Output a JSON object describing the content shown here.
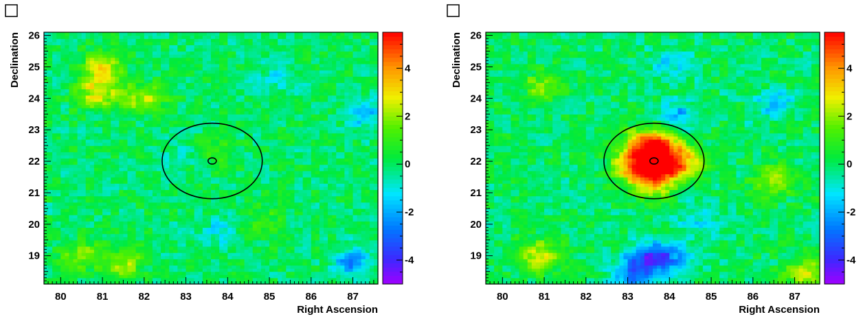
{
  "chart_data": [
    {
      "type": "heatmap",
      "title": "",
      "xlabel": "Right Ascension",
      "ylabel": "Declination",
      "xlim": [
        79.6,
        87.6
      ],
      "ylim": [
        18.1,
        26.1
      ],
      "xticks": [
        "80",
        "81",
        "82",
        "83",
        "84",
        "85",
        "86",
        "87"
      ],
      "yticks": [
        "19",
        "20",
        "21",
        "22",
        "23",
        "24",
        "25",
        "26"
      ],
      "colorbar": {
        "range": [
          -5,
          5.5
        ],
        "ticks": [
          "-4",
          "-2",
          "0",
          "2",
          "4"
        ]
      },
      "grid": false,
      "circles": [
        {
          "ra": 83.63,
          "dec": 22.01,
          "radius_deg": 1.2
        },
        {
          "ra": 83.63,
          "dec": 22.01,
          "radius_deg": 0.1
        }
      ],
      "hotspots": [
        {
          "ra": 80.9,
          "dec": 24.2,
          "value": 2.8
        },
        {
          "ra": 81.0,
          "dec": 25.0,
          "value": 2.5
        },
        {
          "ra": 82.0,
          "dec": 24.0,
          "value": 2.2
        },
        {
          "ra": 80.5,
          "dec": 19.0,
          "value": 1.8
        },
        {
          "ra": 81.5,
          "dec": 18.7,
          "value": 2.0
        },
        {
          "ra": 83.7,
          "dec": 22.3,
          "value": 1.3
        },
        {
          "ra": 84.8,
          "dec": 20.2,
          "value": 1.0
        },
        {
          "ra": 87.3,
          "dec": 23.5,
          "value": -1.8
        },
        {
          "ra": 87.0,
          "dec": 18.8,
          "value": -2.2
        },
        {
          "ra": 83.8,
          "dec": 19.8,
          "value": -1.2
        },
        {
          "ra": 83.0,
          "dec": 22.2,
          "value": -0.8
        },
        {
          "ra": 85.2,
          "dec": 24.6,
          "value": -1.0
        }
      ]
    },
    {
      "type": "heatmap",
      "title": "",
      "xlabel": "Right Ascension",
      "ylabel": "Declination",
      "xlim": [
        79.6,
        87.6
      ],
      "ylim": [
        18.1,
        26.1
      ],
      "xticks": [
        "80",
        "81",
        "82",
        "83",
        "84",
        "85",
        "86",
        "87"
      ],
      "yticks": [
        "19",
        "20",
        "21",
        "22",
        "23",
        "24",
        "25",
        "26"
      ],
      "colorbar": {
        "range": [
          -5,
          5.5
        ],
        "ticks": [
          "-4",
          "-2",
          "0",
          "2",
          "4"
        ]
      },
      "grid": false,
      "circles": [
        {
          "ra": 83.63,
          "dec": 22.01,
          "radius_deg": 1.2
        },
        {
          "ra": 83.63,
          "dec": 22.01,
          "radius_deg": 0.1
        }
      ],
      "hotspots": [
        {
          "ra": 83.63,
          "dec": 21.9,
          "value": 4.9
        },
        {
          "ra": 83.4,
          "dec": 22.6,
          "value": 3.2
        },
        {
          "ra": 83.9,
          "dec": 22.5,
          "value": 3.0
        },
        {
          "ra": 84.3,
          "dec": 21.9,
          "value": 3.5
        },
        {
          "ra": 83.1,
          "dec": 21.9,
          "value": 3.3
        },
        {
          "ra": 83.6,
          "dec": 21.3,
          "value": 3.0
        },
        {
          "ra": 80.9,
          "dec": 19.0,
          "value": 2.8
        },
        {
          "ra": 87.3,
          "dec": 18.4,
          "value": 2.6
        },
        {
          "ra": 86.5,
          "dec": 21.4,
          "value": 2.2
        },
        {
          "ra": 81.0,
          "dec": 24.4,
          "value": 1.8
        },
        {
          "ra": 83.4,
          "dec": 18.9,
          "value": -2.8
        },
        {
          "ra": 84.0,
          "dec": 19.0,
          "value": -2.4
        },
        {
          "ra": 83.2,
          "dec": 18.3,
          "value": -2.6
        },
        {
          "ra": 84.2,
          "dec": 23.5,
          "value": -1.8
        },
        {
          "ra": 86.5,
          "dec": 23.8,
          "value": -1.6
        },
        {
          "ra": 84.0,
          "dec": 25.1,
          "value": -1.2
        },
        {
          "ra": 84.7,
          "dec": 20.2,
          "value": -1.2
        }
      ]
    }
  ]
}
